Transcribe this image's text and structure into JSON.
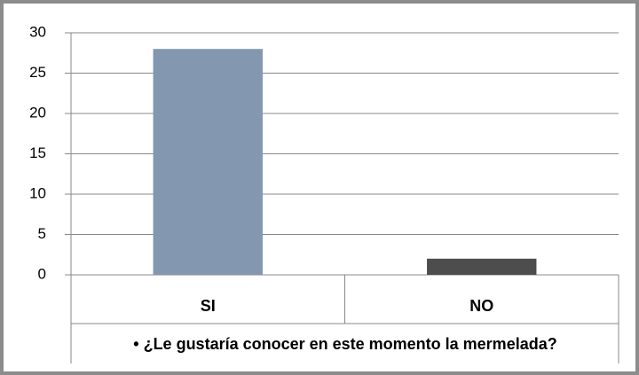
{
  "chart_data": {
    "type": "bar",
    "categories": [
      "SI",
      "NO"
    ],
    "values": [
      28,
      2
    ],
    "colors": [
      "#8497b0",
      "#4d4d4d"
    ],
    "xlabel": "• ¿Le gustaría conocer en este momento la mermelada?",
    "ylim": [
      0,
      30
    ],
    "yticks": [
      0,
      5,
      10,
      15,
      20,
      25,
      30
    ],
    "grid": true
  }
}
